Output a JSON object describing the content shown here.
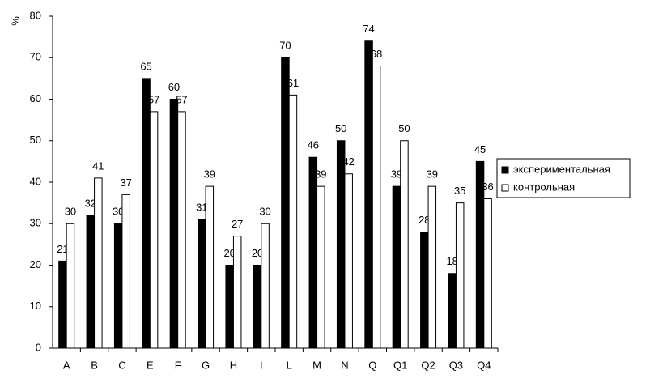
{
  "chart_data": {
    "type": "bar",
    "y_label": "%",
    "categories": [
      "A",
      "B",
      "C",
      "E",
      "F",
      "G",
      "H",
      "I",
      "L",
      "M",
      "N",
      "Q",
      "Q1",
      "Q2",
      "Q3",
      "Q4"
    ],
    "series": [
      {
        "name": "экспериментальная",
        "color": "#000000",
        "values": [
          21,
          32,
          30,
          65,
          60,
          31,
          20,
          20,
          70,
          46,
          50,
          74,
          39,
          28,
          18,
          45
        ]
      },
      {
        "name": "контрольная",
        "color": "#ffffff",
        "values": [
          30,
          41,
          37,
          57,
          57,
          39,
          27,
          30,
          61,
          39,
          42,
          68,
          50,
          39,
          35,
          36
        ]
      }
    ],
    "ylim": [
      0,
      80
    ],
    "yticks": [
      0,
      10,
      20,
      30,
      40,
      50,
      60,
      70,
      80
    ],
    "grid": false,
    "legend": "right"
  }
}
